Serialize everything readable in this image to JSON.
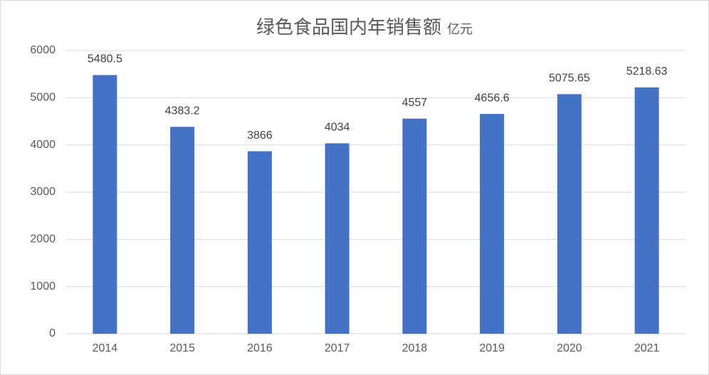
{
  "chart_data": {
    "type": "bar",
    "title": "绿色食品国内年销售额",
    "subtitle": "亿元",
    "categories": [
      "2014",
      "2015",
      "2016",
      "2017",
      "2018",
      "2019",
      "2020",
      "2021"
    ],
    "values": [
      5480.5,
      4383.2,
      3866,
      4034,
      4557,
      4656.6,
      5075.65,
      5218.63
    ],
    "color": "#4472c4",
    "ylim": [
      0,
      6000
    ],
    "yticks": [
      0,
      1000,
      2000,
      3000,
      4000,
      5000,
      6000
    ],
    "grid": true,
    "data_labels": true
  }
}
